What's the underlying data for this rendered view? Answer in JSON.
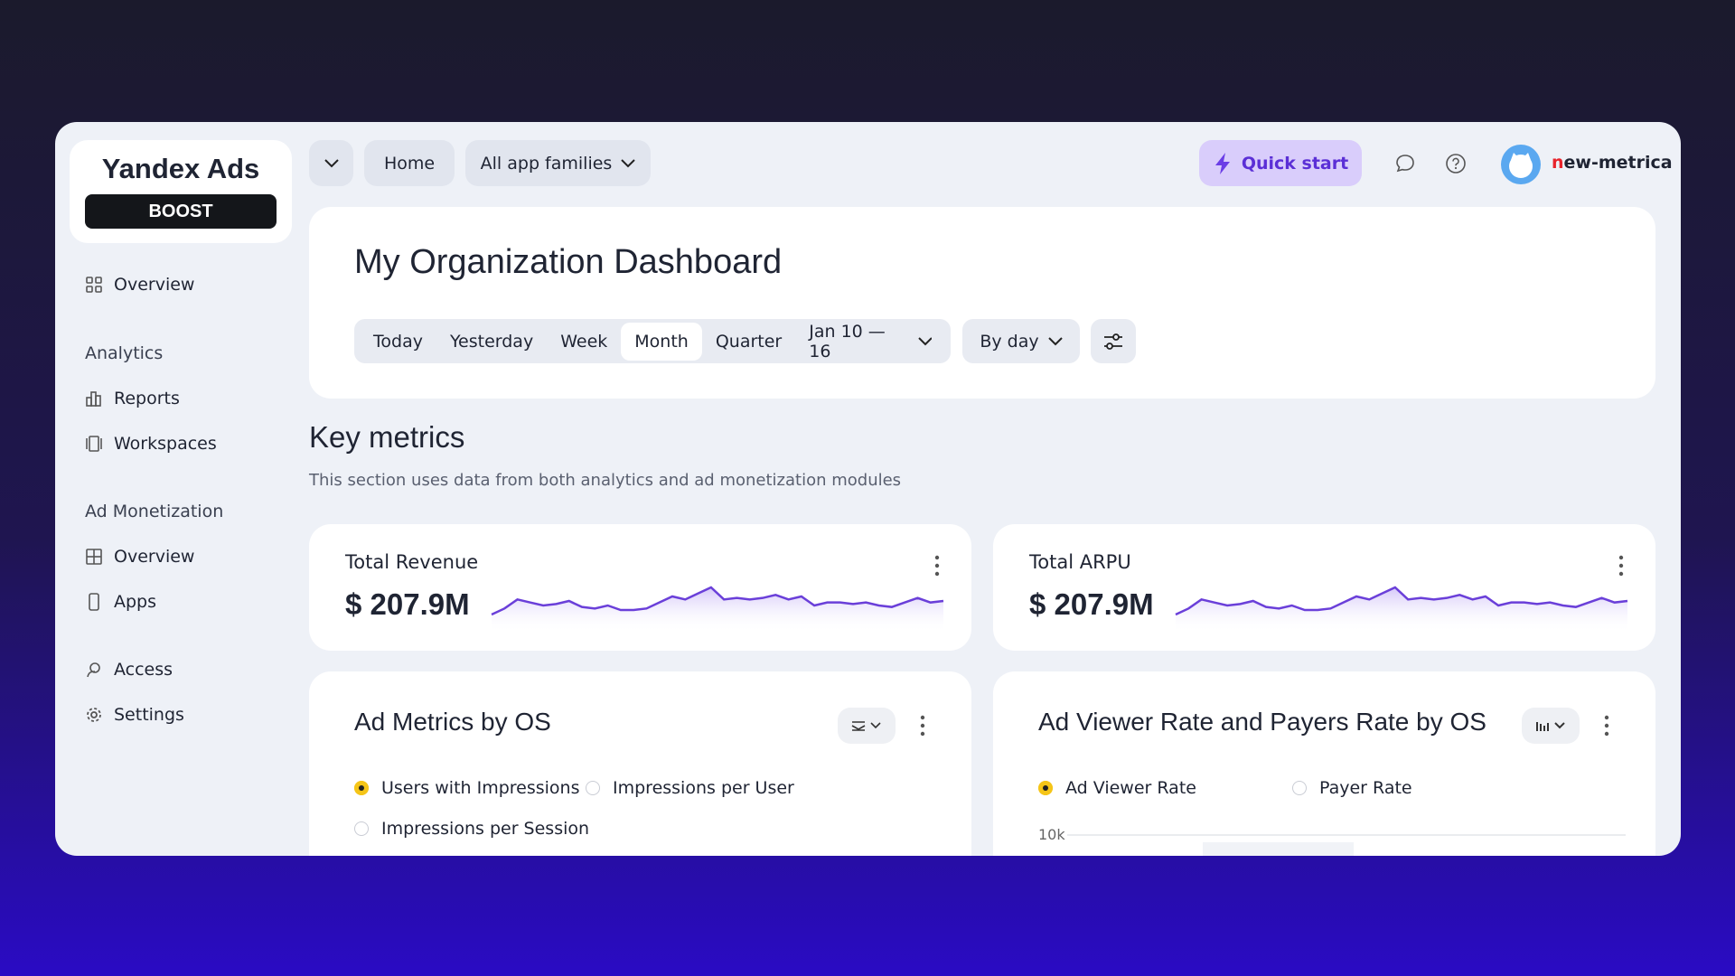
{
  "sidebar": {
    "logo": "Yandex Ads",
    "badge": "BOOST",
    "overview": "Overview",
    "sections": [
      {
        "title": "Analytics",
        "items": [
          "Reports",
          "Workspaces"
        ]
      },
      {
        "title": "Ad Monetization",
        "items": [
          "Overview",
          "Apps"
        ]
      }
    ],
    "footer": [
      "Access",
      "Settings"
    ]
  },
  "topbar": {
    "home": "Home",
    "app_families": "All app families",
    "quick_start": "Quick start",
    "user": "new-metrica"
  },
  "header": {
    "title": "My Organization Dashboard",
    "periods": [
      "Today",
      "Yesterday",
      "Week",
      "Month",
      "Quarter"
    ],
    "selected_period": "Month",
    "date_range": "Jan 10 — 16",
    "grouping": "By day"
  },
  "key_metrics": {
    "title": "Key metrics",
    "subtitle": "This section uses data from both analytics and ad monetization modules",
    "metrics": [
      {
        "label": "Total Revenue",
        "value": "$ 207.9M",
        "trend": [
          30,
          34,
          40,
          38,
          36,
          37,
          39,
          35,
          34,
          36,
          33,
          33,
          34,
          38,
          42,
          40,
          44,
          48,
          40,
          41,
          40,
          41,
          43,
          40,
          42,
          36,
          38,
          38,
          37,
          38,
          36,
          35,
          38,
          41,
          38,
          39
        ]
      },
      {
        "label": "Total ARPU",
        "value": "$ 207.9M",
        "trend": [
          30,
          34,
          40,
          38,
          36,
          37,
          39,
          35,
          34,
          36,
          33,
          33,
          34,
          38,
          42,
          40,
          44,
          48,
          40,
          41,
          40,
          41,
          43,
          40,
          42,
          36,
          38,
          38,
          37,
          38,
          36,
          35,
          38,
          41,
          38,
          39
        ]
      }
    ]
  },
  "panels": [
    {
      "title": "Ad Metrics by OS",
      "options": [
        "Users with Impressions",
        "Impressions per User",
        "Impressions per Session"
      ],
      "selected": 0
    },
    {
      "title": "Ad Viewer Rate and Payers Rate by OS",
      "options": [
        "Ad Viewer Rate",
        "Payer Rate"
      ],
      "selected": 0,
      "yticks": [
        {
          "value": 10000,
          "label": "10k"
        }
      ]
    }
  ]
}
